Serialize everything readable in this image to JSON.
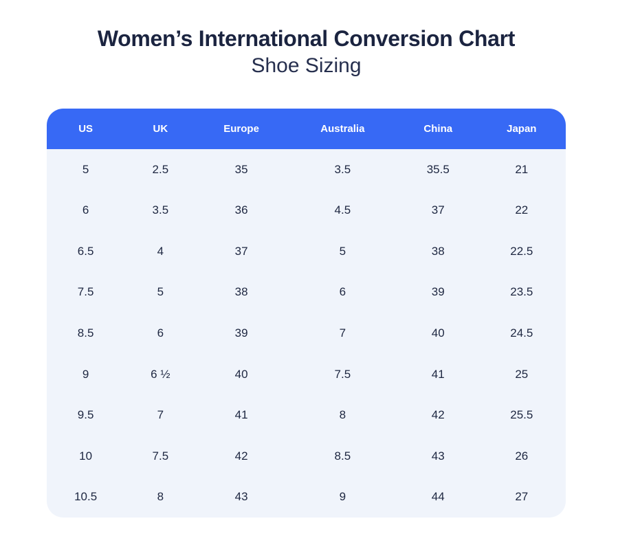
{
  "page": {
    "title": "Women’s International Conversion Chart",
    "subtitle": "Shoe Sizing"
  },
  "colors": {
    "header_bg": "#3769f5",
    "header_text": "#ffffff",
    "body_bg": "#f0f4fb",
    "cell_text": "#1d2640",
    "title_text": "#1b2440",
    "subtitle_text": "#262f4e"
  },
  "chart_data": {
    "type": "table",
    "title": "Women’s International Conversion Chart",
    "subtitle": "Shoe Sizing",
    "columns": [
      "US",
      "UK",
      "Europe",
      "Australia",
      "China",
      "Japan"
    ],
    "rows": [
      [
        "5",
        "2.5",
        "35",
        "3.5",
        "35.5",
        "21"
      ],
      [
        "6",
        "3.5",
        "36",
        "4.5",
        "37",
        "22"
      ],
      [
        "6.5",
        "4",
        "37",
        "5",
        "38",
        "22.5"
      ],
      [
        "7.5",
        "5",
        "38",
        "6",
        "39",
        "23.5"
      ],
      [
        "8.5",
        "6",
        "39",
        "7",
        "40",
        "24.5"
      ],
      [
        "9",
        "6 ½",
        "40",
        "7.5",
        "41",
        "25"
      ],
      [
        "9.5",
        "7",
        "41",
        "8",
        "42",
        "25.5"
      ],
      [
        "10",
        "7.5",
        "42",
        "8.5",
        "43",
        "26"
      ],
      [
        "10.5",
        "8",
        "43",
        "9",
        "44",
        "27"
      ]
    ]
  }
}
